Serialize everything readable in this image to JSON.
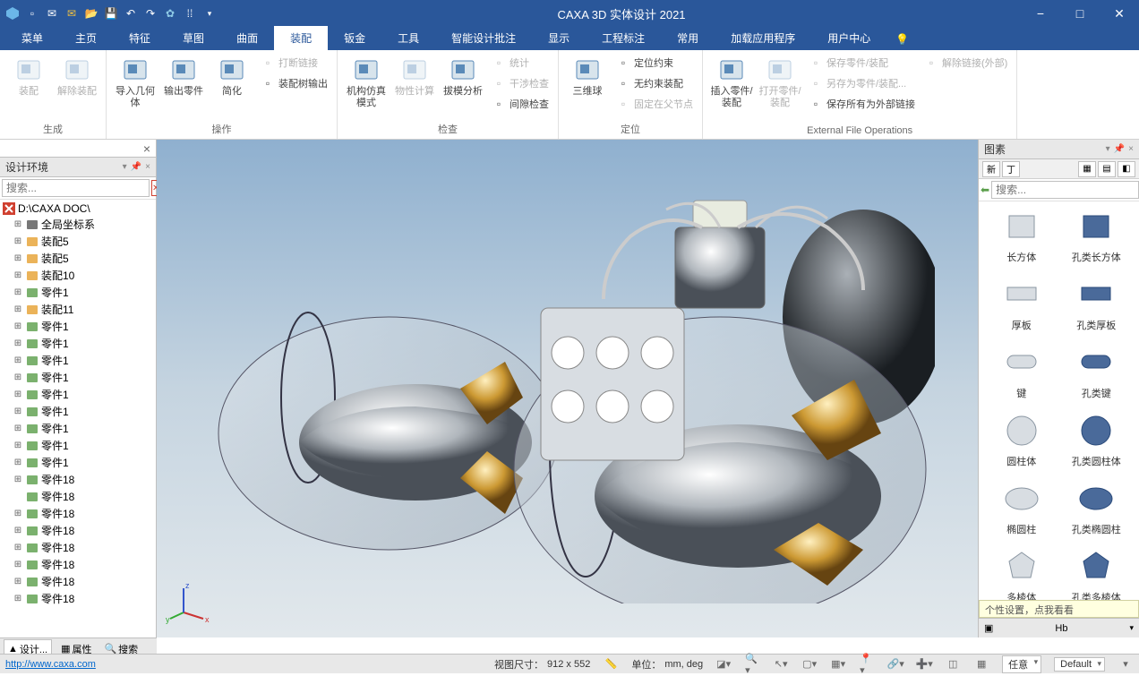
{
  "app": {
    "title": "CAXA 3D 实体设计 2021",
    "url": "http://www.caxa.com"
  },
  "colors": {
    "primary": "#2a579a",
    "ribbon_bg": "#ffffff",
    "panel_bg": "#f0f0f0",
    "viewport_top": "#8fb0cf",
    "viewport_bottom": "#e2e8ec"
  },
  "qat": [
    "logo",
    "new",
    "mail",
    "open",
    "folder",
    "save",
    "undo",
    "redo",
    "settings",
    "grid",
    "dropdown"
  ],
  "winbtns": {
    "min": "−",
    "max": "□",
    "close": "✕"
  },
  "tabs": [
    "菜单",
    "主页",
    "特征",
    "草图",
    "曲面",
    "装配",
    "钣金",
    "工具",
    "智能设计批注",
    "显示",
    "工程标注",
    "常用",
    "加载应用程序",
    "用户中心"
  ],
  "active_tab": 5,
  "ribbon_groups": [
    {
      "label": "生成",
      "big": [
        {
          "l": "装配",
          "dis": true
        },
        {
          "l": "解除装配",
          "dis": true
        }
      ]
    },
    {
      "label": "操作",
      "big": [
        {
          "l": "导入几何体"
        },
        {
          "l": "输出零件"
        },
        {
          "l": "简化"
        }
      ],
      "small": [
        [
          {
            "l": "打断链接",
            "dis": true
          },
          {
            "l": "装配树输出"
          }
        ]
      ]
    },
    {
      "label": "检查",
      "big": [
        {
          "l": "机构仿真模式"
        },
        {
          "l": "物性计算",
          "dis": true
        },
        {
          "l": "拔模分析"
        }
      ],
      "small": [
        [
          {
            "l": "统计",
            "dis": true
          },
          {
            "l": "干涉检查",
            "dis": true
          },
          {
            "l": "间隙检查"
          }
        ]
      ]
    },
    {
      "label": "定位",
      "big": [
        {
          "l": "三维球"
        }
      ],
      "small": [
        [
          {
            "l": "定位约束"
          },
          {
            "l": "无约束装配"
          },
          {
            "l": "固定在父节点",
            "dis": true
          }
        ]
      ]
    },
    {
      "label": "External File Operations",
      "big": [
        {
          "l": "插入零件/装配"
        },
        {
          "l": "打开零件/装配",
          "dis": true
        }
      ],
      "small": [
        [
          {
            "l": "保存零件/装配",
            "dis": true
          },
          {
            "l": "另存为零件/装配...",
            "dis": true
          },
          {
            "l": "保存所有为外部链接"
          }
        ],
        [
          {
            "l": "解除链接(外部)",
            "dis": true
          }
        ]
      ]
    }
  ],
  "left_panel": {
    "title": "设计环境",
    "search_placeholder": "搜索...",
    "root": "D:\\CAXA DOC\\",
    "tree": [
      {
        "l": "全局坐标系",
        "ico": "axis"
      },
      {
        "l": "装配5",
        "ico": "asm"
      },
      {
        "l": "装配5",
        "ico": "asm"
      },
      {
        "l": "装配10",
        "ico": "asm"
      },
      {
        "l": "零件1",
        "ico": "part"
      },
      {
        "l": "装配11",
        "ico": "asm"
      },
      {
        "l": "零件1",
        "ico": "part"
      },
      {
        "l": "零件1",
        "ico": "part"
      },
      {
        "l": "零件1",
        "ico": "part"
      },
      {
        "l": "零件1",
        "ico": "part"
      },
      {
        "l": "零件1",
        "ico": "part"
      },
      {
        "l": "零件1",
        "ico": "part"
      },
      {
        "l": "零件1",
        "ico": "part"
      },
      {
        "l": "零件1",
        "ico": "part"
      },
      {
        "l": "零件1",
        "ico": "part"
      },
      {
        "l": "零件18",
        "ico": "part"
      },
      {
        "l": "零件18",
        "ico": "part",
        "noexp": true
      },
      {
        "l": "零件18",
        "ico": "part"
      },
      {
        "l": "零件18",
        "ico": "part"
      },
      {
        "l": "零件18",
        "ico": "part"
      },
      {
        "l": "零件18",
        "ico": "part"
      },
      {
        "l": "零件18",
        "ico": "part"
      },
      {
        "l": "零件18",
        "ico": "part"
      }
    ],
    "footer_tabs": [
      {
        "l": "设计...",
        "ico": "▲"
      },
      {
        "l": "属性",
        "ico": "▦"
      },
      {
        "l": "搜索",
        "ico": "🔍"
      }
    ]
  },
  "right_panel": {
    "title": "图素",
    "search_placeholder": "搜索...",
    "shapes": [
      [
        "长方体",
        "孔类长方体"
      ],
      [
        "厚板",
        "孔类厚板"
      ],
      [
        "键",
        "孔类键"
      ],
      [
        "圆柱体",
        "孔类圆柱体"
      ],
      [
        "椭圆柱",
        "孔类椭圆柱"
      ],
      [
        "多棱体",
        "孔类多棱体"
      ]
    ],
    "tooltip": "个性设置，点我看看",
    "footer_left": "▣",
    "footer_right": "Hb"
  },
  "statusbar": {
    "view_size_label": "视图尺寸：",
    "view_size": "912 x 552",
    "unit_label": "单位：",
    "unit_value": "mm, deg",
    "selector1": "任意",
    "selector2": "Default"
  }
}
